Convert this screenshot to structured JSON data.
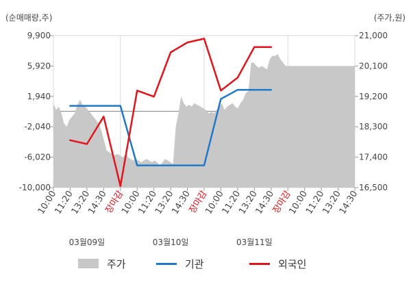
{
  "chart_data": {
    "type": "line",
    "left_axis": {
      "unit_label": "(순매매량,주)",
      "ticks": [
        "9,900",
        "5,920",
        "1,940",
        "-2,040",
        "-6,020",
        "-10,000"
      ],
      "tick_values": [
        9900,
        5920,
        1940,
        -2040,
        -6020,
        -10000
      ],
      "range": [
        -10000,
        9900
      ]
    },
    "right_axis": {
      "unit_label": "(주가,원)",
      "ticks": [
        "21,000",
        "20,100",
        "19,200",
        "18,300",
        "17,400",
        "16,500"
      ],
      "tick_values": [
        21000,
        20100,
        19200,
        18300,
        17400,
        16500
      ],
      "range": [
        16500,
        21000
      ]
    },
    "x_ticks": [
      {
        "label": "10:00",
        "market_close": false
      },
      {
        "label": "11:20",
        "market_close": false
      },
      {
        "label": "13:20",
        "market_close": false
      },
      {
        "label": "14:30",
        "market_close": false
      },
      {
        "label": "장마감",
        "market_close": true
      },
      {
        "label": "10:00",
        "market_close": false
      },
      {
        "label": "11:20",
        "market_close": false
      },
      {
        "label": "13:20",
        "market_close": false
      },
      {
        "label": "14:30",
        "market_close": false
      },
      {
        "label": "장마감",
        "market_close": true
      },
      {
        "label": "10:00",
        "market_close": false
      },
      {
        "label": "11:20",
        "market_close": false
      },
      {
        "label": "13:20",
        "market_close": false
      },
      {
        "label": "14:30",
        "market_close": false
      },
      {
        "label": "장마감",
        "market_close": true
      },
      {
        "label": "10:00",
        "market_close": false
      },
      {
        "label": "11:20",
        "market_close": false
      },
      {
        "label": "13:20",
        "market_close": false
      },
      {
        "label": "14:30",
        "market_close": false
      }
    ],
    "day_labels": [
      {
        "label": "03월09일",
        "center_index": 2
      },
      {
        "label": "03월10일",
        "center_index": 7
      },
      {
        "label": "03월11일",
        "center_index": 12
      }
    ],
    "baseline_value": 0,
    "series": [
      {
        "name": "주가",
        "kind": "area",
        "axis": "right",
        "color": "#c8c8c8",
        "x": [
          0,
          0.3,
          0.6,
          0.9,
          1.2,
          1.5,
          1.8,
          2.1,
          2.4,
          2.7,
          3.0,
          3.3,
          3.6,
          3.9,
          4.2,
          4.5,
          4.8,
          5.1,
          5.4,
          5.7,
          6.0,
          6.3,
          6.6,
          6.9,
          7.2,
          7.5,
          7.8,
          8.1,
          8.4,
          8.7,
          9.0,
          9.3,
          9.6,
          9.9,
          10.2,
          10.5,
          10.8,
          11.1,
          11.4,
          11.7,
          12.0,
          12.3,
          12.6,
          12.9,
          13.2,
          13.5,
          13.8,
          14.1,
          14.4,
          14.7,
          15.0,
          15.3,
          15.6,
          15.9,
          16.2,
          16.6,
          16.9,
          17.2,
          17.5,
          17.8,
          18.1,
          18.4,
          18.7,
          19.0,
          19.3,
          19.6,
          19.9,
          20.2,
          20.5,
          20.8,
          21.1,
          21.4,
          21.7,
          22.0,
          22.3,
          22.6,
          22.9,
          23.2,
          23.5,
          23.8,
          24.1,
          24.4,
          24.7,
          25.0,
          25.3,
          25.6,
          25.9,
          26.2,
          26.5,
          26.8,
          27.1,
          27.4,
          27.7,
          28.0,
          28.3,
          28.6,
          28.9,
          29.2,
          29.5,
          29.8,
          30.1,
          30.4,
          30.7,
          31.0,
          31.3,
          31.6,
          31.9,
          32.2,
          32.5,
          32.8,
          33.1,
          33.4,
          33.7,
          34.0
        ],
        "values": [
          19000,
          18800,
          18900,
          18700,
          18400,
          18300,
          18500,
          18600,
          18700,
          18950,
          19100,
          18950,
          18900,
          18800,
          18700,
          18600,
          18500,
          18400,
          18200,
          17900,
          17600,
          17550,
          17500,
          17450,
          17500,
          17450,
          17400,
          17450,
          17400,
          17350,
          17300,
          17350,
          17300,
          17250,
          17300,
          17350,
          17300,
          17250,
          17300,
          17250,
          17150,
          17250,
          17350,
          17300,
          17250,
          17200,
          18300,
          18700,
          19200,
          19000,
          18900,
          18950,
          18900,
          19000,
          18950,
          18900,
          18850,
          18800,
          18700,
          18750,
          18700,
          18800,
          18900,
          19000,
          18800,
          18900,
          18950,
          19000,
          18900,
          18850,
          19000,
          19100,
          19300,
          19350,
          20200,
          20200,
          20100,
          20050,
          20100,
          20050,
          20000,
          20300,
          20400,
          20400,
          20450,
          20300,
          20200,
          20100,
          20100,
          20100,
          20100,
          20100,
          20100,
          20100,
          20100,
          20100,
          20100,
          20100,
          20100,
          20100,
          20100,
          20100,
          20100,
          20100,
          20100,
          20100,
          20100,
          20100,
          20100,
          20100,
          20100,
          20100,
          20100,
          20100
        ]
      },
      {
        "name": "기관",
        "kind": "line",
        "axis": "left",
        "color": "#1f78c8",
        "x": [
          1,
          2,
          3,
          4,
          5,
          6,
          7,
          8,
          9,
          10,
          11,
          12,
          13
        ],
        "values": [
          700,
          700,
          700,
          700,
          -7100,
          -7100,
          -7100,
          -7100,
          -7100,
          1600,
          2800,
          2800,
          2800
        ]
      },
      {
        "name": "외국인",
        "kind": "line",
        "axis": "left",
        "color": "#e2141b",
        "x": [
          1,
          2,
          3,
          4,
          5,
          6,
          7,
          8,
          9,
          10,
          11,
          12,
          13
        ],
        "values": [
          -3800,
          -4300,
          -700,
          -9800,
          2700,
          1900,
          7700,
          9000,
          9500,
          2700,
          4400,
          8400,
          8400
        ]
      }
    ]
  },
  "legend": [
    {
      "name": "주가",
      "color": "#c8c8c8",
      "kind": "area"
    },
    {
      "name": "기관",
      "color": "#1f78c8",
      "kind": "line"
    },
    {
      "name": "외국인",
      "color": "#e2141b",
      "kind": "line"
    }
  ]
}
